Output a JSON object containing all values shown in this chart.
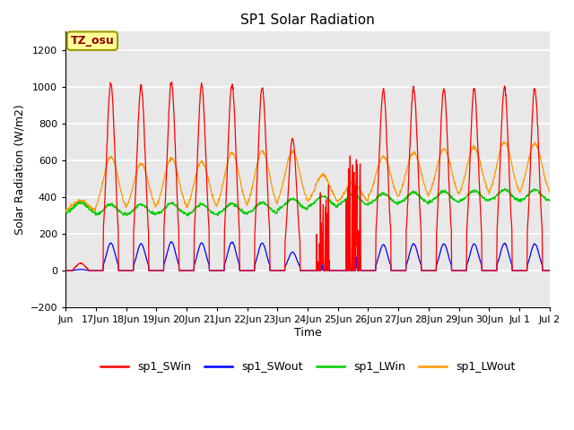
{
  "title": "SP1 Solar Radiation",
  "xlabel": "Time",
  "ylabel": "Solar Radiation (W/m2)",
  "ylim": [
    -200,
    1300
  ],
  "yticks": [
    -200,
    0,
    200,
    400,
    600,
    800,
    1000,
    1200
  ],
  "background_color": "#ffffff",
  "plot_bg_color": "#e8e8e8",
  "grid_color": "#ffffff",
  "line_colors": {
    "sp1_SWin": "#ff0000",
    "sp1_SWout": "#0000ff",
    "sp1_LWin": "#00cc00",
    "sp1_LWout": "#ff9900"
  },
  "legend_labels": [
    "sp1_SWin",
    "sp1_SWout",
    "sp1_LWin",
    "sp1_LWout"
  ],
  "tz_label": "TZ_osu",
  "num_days": 16,
  "x_tick_positions": [
    0,
    1,
    2,
    3,
    4,
    5,
    6,
    7,
    8,
    9,
    10,
    11,
    12,
    13,
    14,
    15,
    16
  ],
  "x_tick_labels": [
    "Jun",
    "17Jun",
    "18Jun",
    "19Jun",
    "20Jun",
    "21Jun",
    "22Jun",
    "23Jun",
    "24Jun",
    "25Jun",
    "26Jun",
    "27Jun",
    "28Jun",
    "29Jun",
    "30Jun",
    "Jul 1",
    "Jul 2"
  ]
}
